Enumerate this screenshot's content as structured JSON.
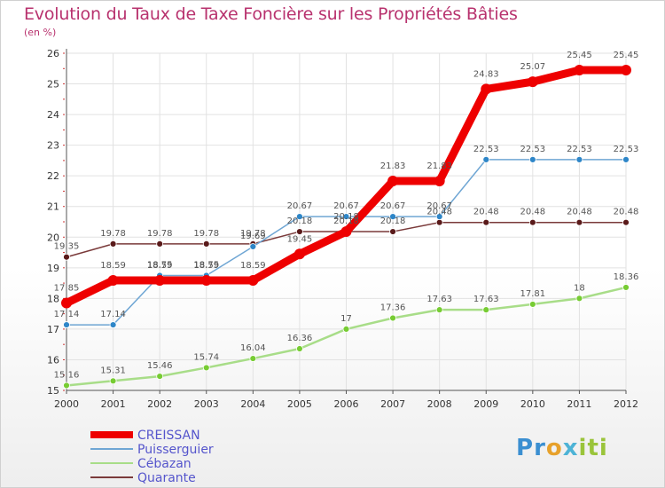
{
  "title": "Evolution du Taux de Taxe Foncière sur les Propriétés Bâties",
  "unit_label": "(en %)",
  "logo_text": "Proxiti",
  "chart_data": {
    "type": "line",
    "title": "Evolution du Taux de Taxe Foncière sur les Propriétés Bâties",
    "ylabel": "(en %)",
    "x": [
      "2000",
      "2001",
      "2002",
      "2003",
      "2004",
      "2005",
      "2006",
      "2007",
      "2008",
      "2009",
      "2010",
      "2011",
      "2012"
    ],
    "ylim": [
      15,
      26
    ],
    "yticks": [
      15,
      16,
      17,
      18,
      19,
      20,
      21,
      22,
      23,
      24,
      25,
      26
    ],
    "grid": true,
    "legend_position": "bottom-left",
    "series": [
      {
        "name": "CREISSAN",
        "color": "#ee0000",
        "marker": "#ee0000",
        "values": [
          17.85,
          18.59,
          18.59,
          18.59,
          18.59,
          19.45,
          20.18,
          21.83,
          21.83,
          24.83,
          25.07,
          25.45,
          25.45
        ],
        "labels": [
          "17.85",
          "18.59",
          "18.59",
          "18.59",
          "18.59",
          "19.45",
          "20.18",
          "21.83",
          "21.83",
          "24.83",
          "25.07",
          "25.45",
          "25.45"
        ]
      },
      {
        "name": "Puisserguier",
        "color": "#6fa6d4",
        "marker": "#2e86c8",
        "values": [
          17.14,
          17.14,
          18.75,
          18.75,
          19.69,
          20.67,
          20.67,
          20.67,
          20.67,
          22.53,
          22.53,
          22.53,
          22.53
        ],
        "labels": [
          "17.14",
          "17.14",
          "18.75",
          "18.75",
          "19.69",
          "20.67",
          "20.67",
          "20.67",
          "20.67",
          "22.53",
          "22.53",
          "22.53",
          "22.53"
        ]
      },
      {
        "name": "Cébazan",
        "color": "#a8dd88",
        "marker": "#77cc33",
        "values": [
          15.16,
          15.31,
          15.46,
          15.74,
          16.04,
          16.36,
          17,
          17.36,
          17.63,
          17.63,
          17.81,
          18,
          18.36
        ],
        "labels": [
          "15.16",
          "15.31",
          "15.46",
          "15.74",
          "16.04",
          "16.36",
          "17",
          "17.36",
          "17.63",
          "17.63",
          "17.81",
          "18",
          "18.36"
        ]
      },
      {
        "name": "Quarante",
        "color": "#7a3a3a",
        "marker": "#5a1a1a",
        "values": [
          19.35,
          19.78,
          19.78,
          19.78,
          19.78,
          20.18,
          20.18,
          20.18,
          20.48,
          20.48,
          20.48,
          20.48,
          20.48
        ],
        "labels": [
          "19.35",
          "19.78",
          "19.78",
          "19.78",
          "19.78",
          "20.18",
          "20.18",
          "20.18",
          "20.48",
          "20.48",
          "20.48",
          "20.48",
          "20.48"
        ]
      }
    ]
  }
}
